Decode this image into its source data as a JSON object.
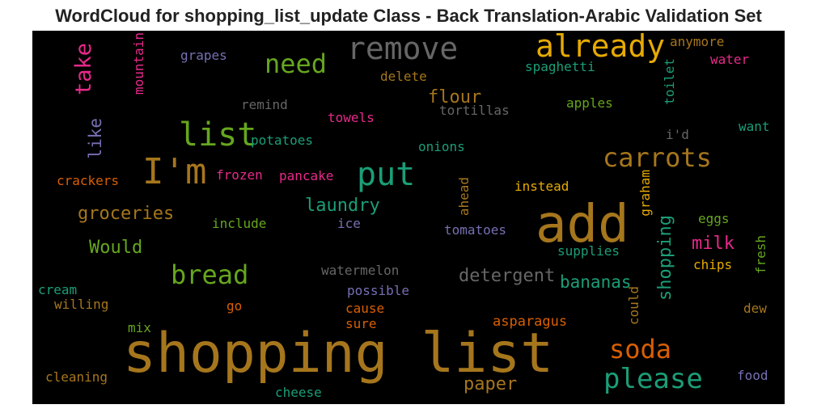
{
  "title": "WordCloud for shopping_list_update Class - Back Translation-Arabic Validation Set",
  "words": [
    {
      "text": "shopping list",
      "color": "#a6761d"
    },
    {
      "text": "add",
      "color": "#a6761d"
    },
    {
      "text": "already",
      "color": "#e6ab02"
    },
    {
      "text": "remove",
      "color": "#666666"
    },
    {
      "text": "I'm",
      "color": "#a6761d"
    },
    {
      "text": "list",
      "color": "#66a61e"
    },
    {
      "text": "put",
      "color": "#1b9e77"
    },
    {
      "text": "need",
      "color": "#66a61e"
    },
    {
      "text": "please",
      "color": "#1b9e77"
    },
    {
      "text": "carrots",
      "color": "#a6761d"
    },
    {
      "text": "bread",
      "color": "#66a61e"
    },
    {
      "text": "soda",
      "color": "#d95f02"
    },
    {
      "text": "take",
      "color": "#e7298a"
    },
    {
      "text": "groceries",
      "color": "#a6761d"
    },
    {
      "text": "Would",
      "color": "#66a61e"
    },
    {
      "text": "laundry",
      "color": "#1b9e77"
    },
    {
      "text": "detergent",
      "color": "#666666"
    },
    {
      "text": "bananas",
      "color": "#1b9e77"
    },
    {
      "text": "milk",
      "color": "#e7298a"
    },
    {
      "text": "shopping",
      "color": "#1b9e77"
    },
    {
      "text": "paper",
      "color": "#a6761d"
    },
    {
      "text": "flour",
      "color": "#a6761d"
    },
    {
      "text": "like",
      "color": "#7570b3"
    },
    {
      "text": "asparagus",
      "color": "#d95f02"
    },
    {
      "text": "grapes",
      "color": "#7570b3"
    },
    {
      "text": "mountain",
      "color": "#e7298a"
    },
    {
      "text": "anymore",
      "color": "#a6761d"
    },
    {
      "text": "water",
      "color": "#e7298a"
    },
    {
      "text": "spaghetti",
      "color": "#1b9e77"
    },
    {
      "text": "delete",
      "color": "#a6761d"
    },
    {
      "text": "remind",
      "color": "#666666"
    },
    {
      "text": "tortillas",
      "color": "#666666"
    },
    {
      "text": "apples",
      "color": "#66a61e"
    },
    {
      "text": "toilet",
      "color": "#1b9e77"
    },
    {
      "text": "towels",
      "color": "#e7298a"
    },
    {
      "text": "potatoes",
      "color": "#1b9e77"
    },
    {
      "text": "i'd",
      "color": "#666666"
    },
    {
      "text": "want",
      "color": "#1b9e77"
    },
    {
      "text": "onions",
      "color": "#1b9e77"
    },
    {
      "text": "crackers",
      "color": "#d95f02"
    },
    {
      "text": "frozen",
      "color": "#e7298a"
    },
    {
      "text": "pancake",
      "color": "#e7298a"
    },
    {
      "text": "ahead",
      "color": "#a6761d"
    },
    {
      "text": "instead",
      "color": "#e6ab02"
    },
    {
      "text": "graham",
      "color": "#e6ab02"
    },
    {
      "text": "include",
      "color": "#66a61e"
    },
    {
      "text": "ice",
      "color": "#7570b3"
    },
    {
      "text": "tomatoes",
      "color": "#7570b3"
    },
    {
      "text": "eggs",
      "color": "#66a61e"
    },
    {
      "text": "fresh",
      "color": "#66a61e"
    },
    {
      "text": "supplies",
      "color": "#1b9e77"
    },
    {
      "text": "chips",
      "color": "#e6ab02"
    },
    {
      "text": "watermelon",
      "color": "#666666"
    },
    {
      "text": "cream",
      "color": "#1b9e77"
    },
    {
      "text": "possible",
      "color": "#7570b3"
    },
    {
      "text": "willing",
      "color": "#a6761d"
    },
    {
      "text": "go",
      "color": "#d95f02"
    },
    {
      "text": "cause",
      "color": "#d95f02"
    },
    {
      "text": "could",
      "color": "#a6761d"
    },
    {
      "text": "dew",
      "color": "#a6761d"
    },
    {
      "text": "mix",
      "color": "#66a61e"
    },
    {
      "text": "sure",
      "color": "#d95f02"
    },
    {
      "text": "cleaning",
      "color": "#a6761d"
    },
    {
      "text": "food",
      "color": "#7570b3"
    },
    {
      "text": "cheese",
      "color": "#1b9e77"
    }
  ]
}
